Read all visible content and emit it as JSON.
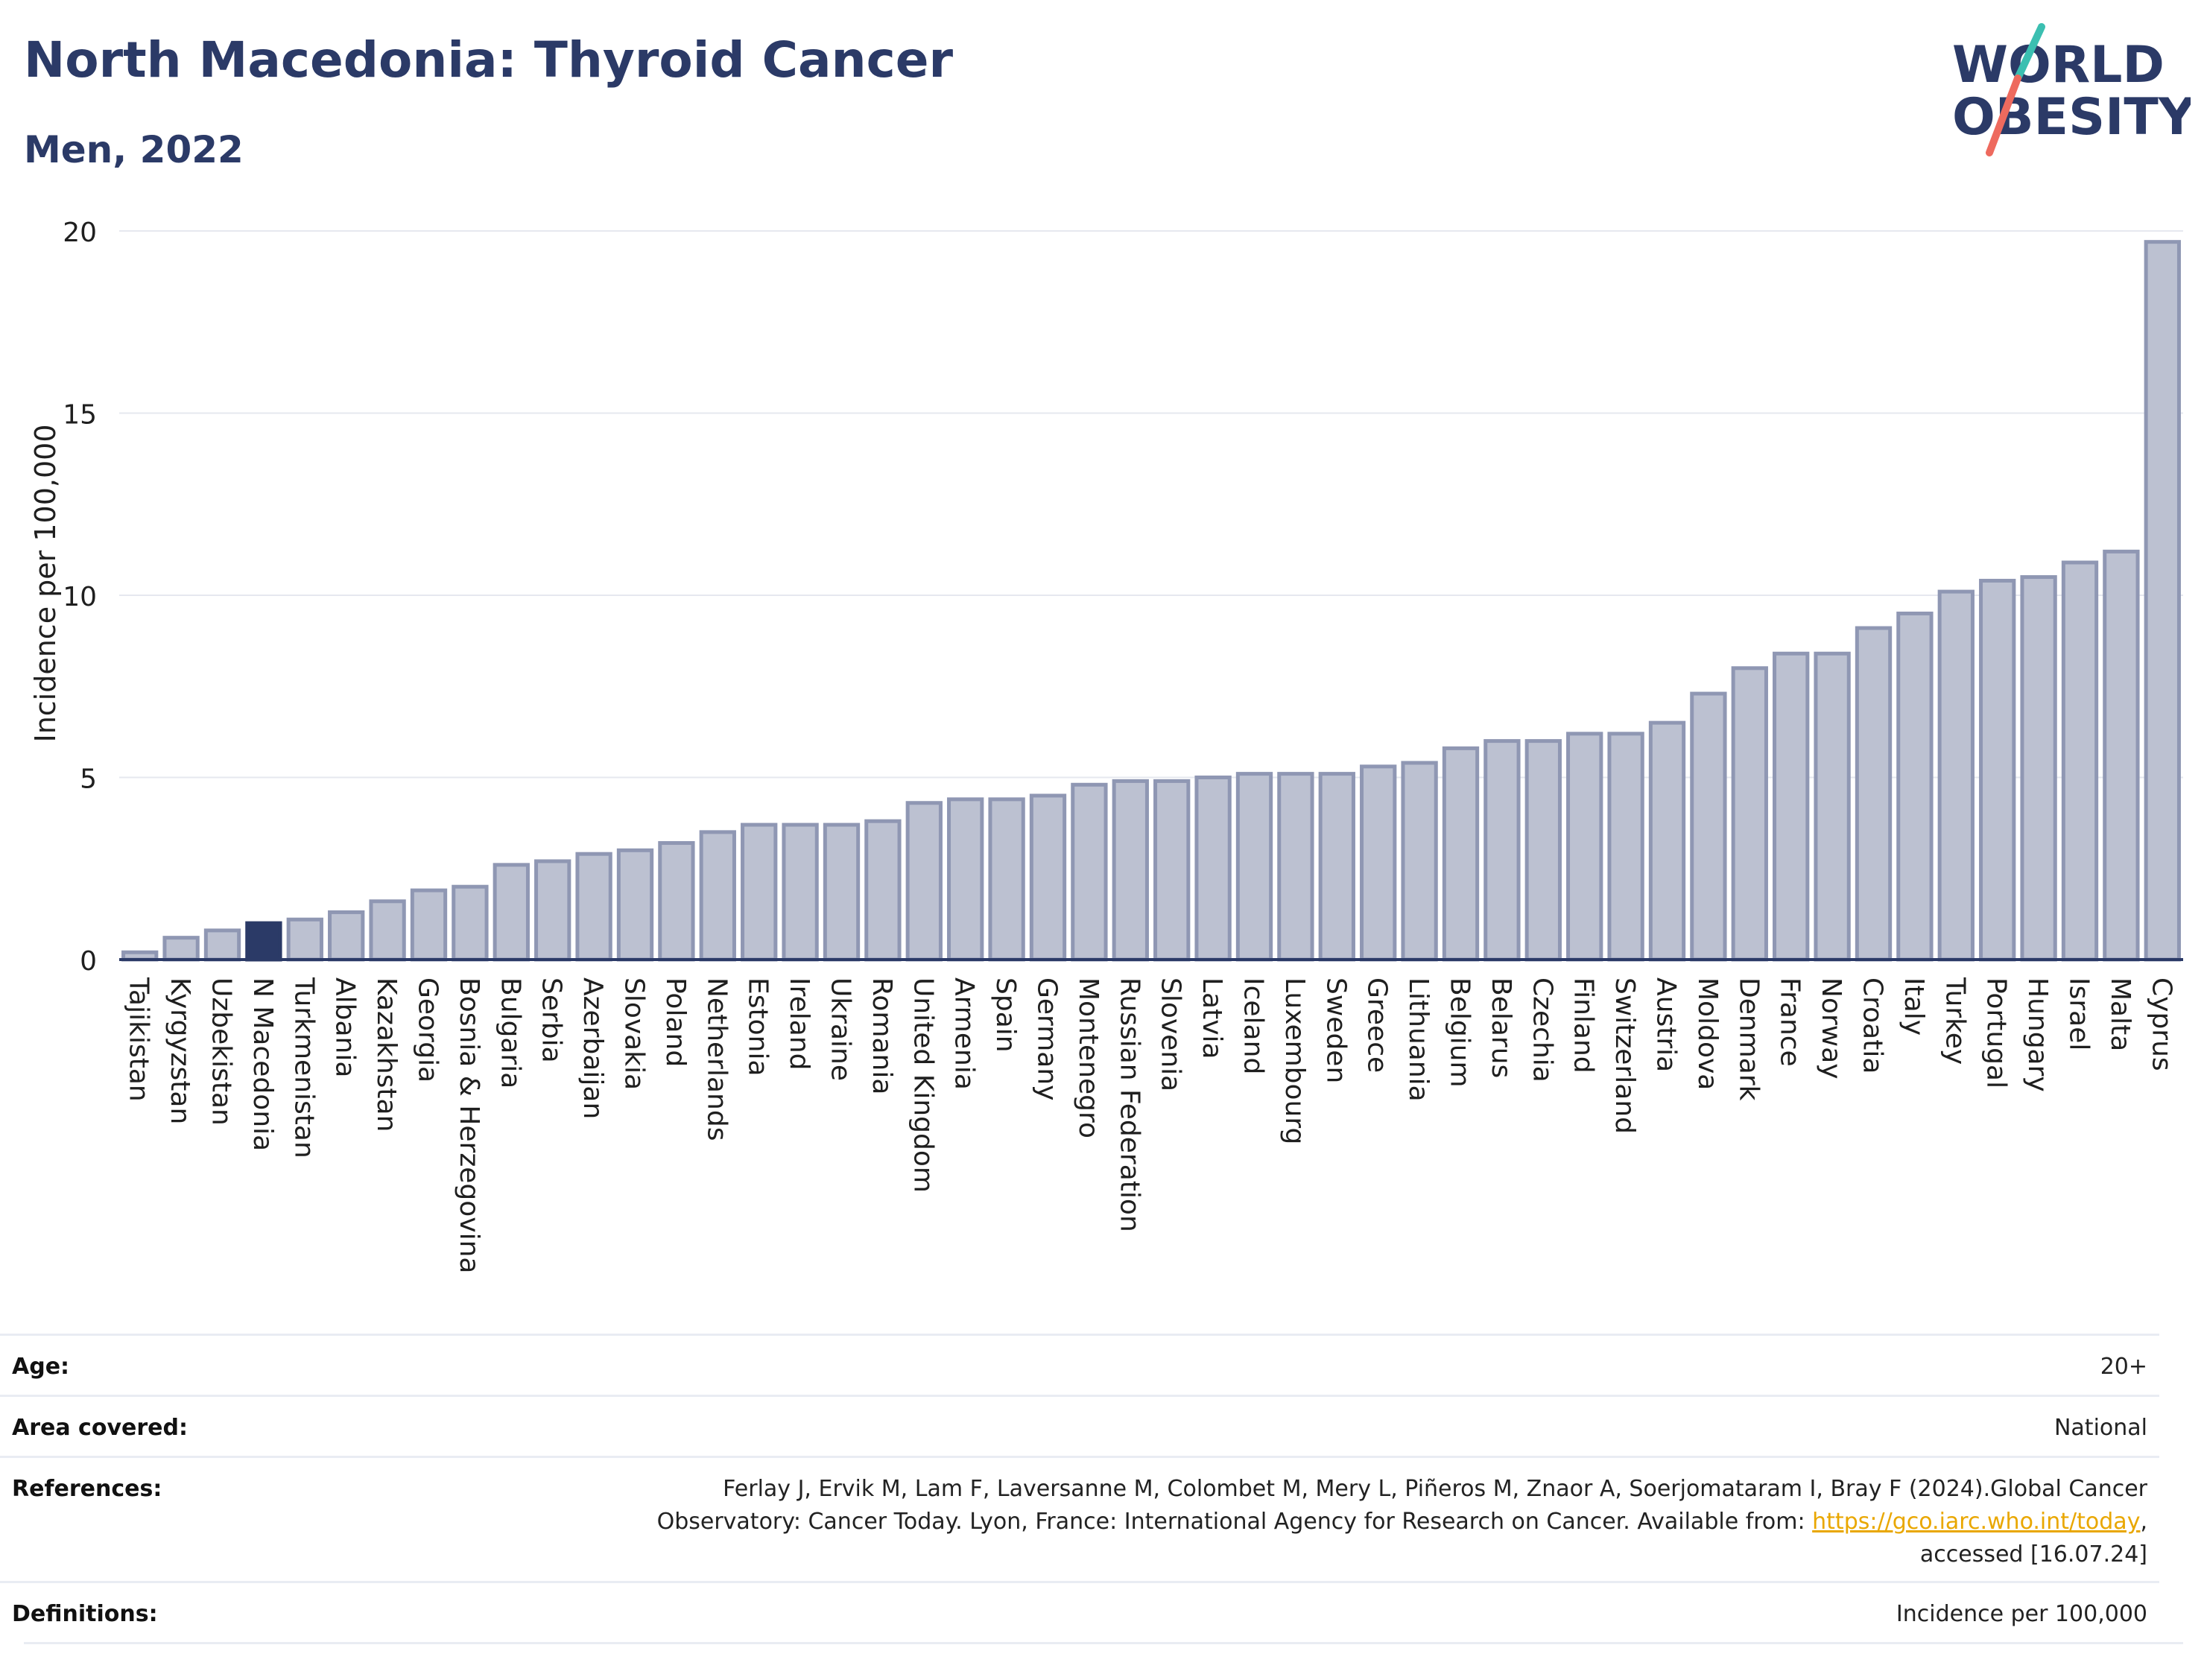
{
  "header": {
    "title": "North Macedonia: Thyroid Cancer",
    "subtitle": "Men, 2022"
  },
  "logo": {
    "line1": "WORLD",
    "line2": "OBESITY",
    "text_color": "#2b3a67",
    "slash_colors": [
      "#3bbfb1",
      "#ee6a5e"
    ]
  },
  "colors": {
    "bar_default": "#bcc1d1",
    "bar_default_stroke": "#8f97b3",
    "bar_highlight": "#2b3a67",
    "grid": "#e6e8ef",
    "axis": "#2b3a67"
  },
  "chart_data": {
    "type": "bar",
    "ylabel": "Incidence per 100,000",
    "ylim": [
      0,
      20
    ],
    "yticks": [
      0,
      5,
      10,
      15,
      20
    ],
    "grid": true,
    "highlight": "N Macedonia",
    "categories": [
      "Tajikistan",
      "Kyrgyzstan",
      "Uzbekistan",
      "N Macedonia",
      "Turkmenistan",
      "Albania",
      "Kazakhstan",
      "Georgia",
      "Bosnia & Herzegovina",
      "Bulgaria",
      "Serbia",
      "Azerbaijan",
      "Slovakia",
      "Poland",
      "Netherlands",
      "Estonia",
      "Ireland",
      "Ukraine",
      "Romania",
      "United Kingdom",
      "Armenia",
      "Spain",
      "Germany",
      "Montenegro",
      "Russian Federation",
      "Slovenia",
      "Latvia",
      "Iceland",
      "Luxembourg",
      "Sweden",
      "Greece",
      "Lithuania",
      "Belgium",
      "Belarus",
      "Czechia",
      "Finland",
      "Switzerland",
      "Austria",
      "Moldova",
      "Denmark",
      "France",
      "Norway",
      "Croatia",
      "Italy",
      "Turkey",
      "Portugal",
      "Hungary",
      "Israel",
      "Malta",
      "Cyprus"
    ],
    "values": [
      0.2,
      0.6,
      0.8,
      1.0,
      1.1,
      1.3,
      1.6,
      1.9,
      2.0,
      2.6,
      2.7,
      2.9,
      3.0,
      3.2,
      3.5,
      3.7,
      3.7,
      3.7,
      3.8,
      4.3,
      4.4,
      4.4,
      4.5,
      4.8,
      4.9,
      4.9,
      5.0,
      5.1,
      5.1,
      5.1,
      5.3,
      5.4,
      5.8,
      6.0,
      6.0,
      6.2,
      6.2,
      6.5,
      7.3,
      8.0,
      8.4,
      8.4,
      9.1,
      9.5,
      10.1,
      10.4,
      10.5,
      10.9,
      11.2,
      19.7
    ]
  },
  "info": {
    "age": {
      "label": "Age:",
      "value": "20+"
    },
    "area": {
      "label": "Area covered:",
      "value": "National"
    },
    "references": {
      "label": "References:",
      "line1": "Ferlay J, Ervik M, Lam F, Laversanne M, Colombet M, Mery L, Piñeros M, Znaor A, Soerjomataram I, Bray F (2024).Global Cancer",
      "line2_pre": "Observatory: Cancer Today. Lyon, France: International Agency for Research on Cancer. Available from: ",
      "link": "https://gco.iarc.who.int/today",
      "line2_post": ",",
      "line3": "accessed [16.07.24]"
    },
    "definitions": {
      "label": "Definitions:",
      "value": "Incidence per 100,000"
    }
  }
}
